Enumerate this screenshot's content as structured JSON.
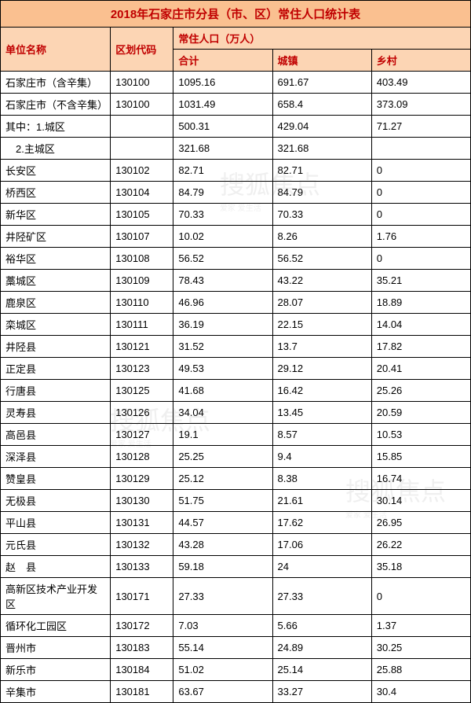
{
  "title": "2018年石家庄市分县（市、区）常住人口统计表",
  "headers": {
    "unit_name": "单位名称",
    "area_code": "区划代码",
    "population_group": "常住人口（万人）",
    "total": "合计",
    "urban": "城镇",
    "rural": "乡村"
  },
  "rows": [
    {
      "name": "石家庄市（含辛集）",
      "code": "130100",
      "total": "1095.16",
      "urban": "691.67",
      "rural": "403.49"
    },
    {
      "name": "石家庄市（不含辛集）",
      "code": "130100",
      "total": "1031.49",
      "urban": "658.4",
      "rural": "373.09"
    },
    {
      "name": "其中：1.城区",
      "code": "",
      "total": "500.31",
      "urban": "429.04",
      "rural": "71.27"
    },
    {
      "name": "　2.主城区",
      "code": "",
      "total": "321.68",
      "urban": "321.68",
      "rural": ""
    },
    {
      "name": "长安区",
      "code": "130102",
      "total": "82.71",
      "urban": "82.71",
      "rural": "0"
    },
    {
      "name": "桥西区",
      "code": "130104",
      "total": "84.79",
      "urban": "84.79",
      "rural": "0"
    },
    {
      "name": "新华区",
      "code": "130105",
      "total": "70.33",
      "urban": "70.33",
      "rural": "0"
    },
    {
      "name": "井陉矿区",
      "code": "130107",
      "total": "10.02",
      "urban": "8.26",
      "rural": "1.76"
    },
    {
      "name": "裕华区",
      "code": "130108",
      "total": "56.52",
      "urban": "56.52",
      "rural": "0"
    },
    {
      "name": "藁城区",
      "code": "130109",
      "total": "78.43",
      "urban": "43.22",
      "rural": "35.21"
    },
    {
      "name": "鹿泉区",
      "code": "130110",
      "total": "46.96",
      "urban": "28.07",
      "rural": "18.89"
    },
    {
      "name": "栾城区",
      "code": "130111",
      "total": "36.19",
      "urban": "22.15",
      "rural": "14.04"
    },
    {
      "name": "井陉县",
      "code": "130121",
      "total": "31.52",
      "urban": "13.7",
      "rural": "17.82"
    },
    {
      "name": "正定县",
      "code": "130123",
      "total": "49.53",
      "urban": "29.12",
      "rural": "20.41"
    },
    {
      "name": "行唐县",
      "code": "130125",
      "total": "41.68",
      "urban": "16.42",
      "rural": "25.26"
    },
    {
      "name": "灵寿县",
      "code": "130126",
      "total": "34.04",
      "urban": "13.45",
      "rural": "20.59"
    },
    {
      "name": "高邑县",
      "code": "130127",
      "total": "19.1",
      "urban": "8.57",
      "rural": "10.53"
    },
    {
      "name": "深泽县",
      "code": "130128",
      "total": "25.25",
      "urban": "9.4",
      "rural": "15.85"
    },
    {
      "name": "赞皇县",
      "code": "130129",
      "total": "25.12",
      "urban": "8.38",
      "rural": "16.74"
    },
    {
      "name": "无极县",
      "code": "130130",
      "total": "51.75",
      "urban": "21.61",
      "rural": "30.14"
    },
    {
      "name": "平山县",
      "code": "130131",
      "total": "44.57",
      "urban": "17.62",
      "rural": "26.95"
    },
    {
      "name": "元氏县",
      "code": "130132",
      "total": "43.28",
      "urban": "17.06",
      "rural": "26.22"
    },
    {
      "name": "赵　县",
      "code": "130133",
      "total": "59.18",
      "urban": "24",
      "rural": "35.18"
    },
    {
      "name": "高新区技术产业开发区",
      "code": "130171",
      "total": "27.33",
      "urban": "27.33",
      "rural": "0"
    },
    {
      "name": "循环化工园区",
      "code": "130172",
      "total": "7.03",
      "urban": "5.66",
      "rural": "1.37"
    },
    {
      "name": "晋州市",
      "code": "130183",
      "total": "55.14",
      "urban": "24.89",
      "rural": "30.25"
    },
    {
      "name": "新乐市",
      "code": "130184",
      "total": "51.02",
      "urban": "25.14",
      "rural": "25.88"
    },
    {
      "name": "辛集市",
      "code": "130181",
      "total": "63.67",
      "urban": "33.27",
      "rural": "30.4"
    }
  ],
  "watermark": {
    "main": "搜狐焦点",
    "sub": "爱家 爱生活"
  },
  "colors": {
    "title_bg": "#fac090",
    "title_text": "#c00000",
    "header_bg": "#fcd5b4",
    "header_text": "#c00000",
    "border": "#000000"
  }
}
